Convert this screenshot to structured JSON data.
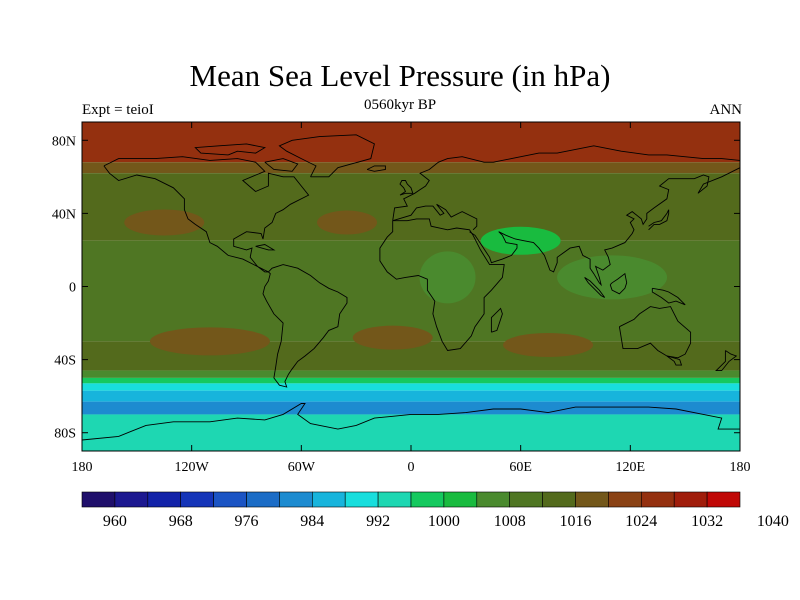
{
  "title": "Mean Sea Level Pressure (in hPa)",
  "subtitle": "0560kyr BP",
  "left_label": "Expt = teioI",
  "right_label": "ANN",
  "lat_ticks": [
    {
      "label": "80N",
      "lat": 80
    },
    {
      "label": "40N",
      "lat": 40
    },
    {
      "label": "0",
      "lat": 0
    },
    {
      "label": "40S",
      "lat": -40
    },
    {
      "label": "80S",
      "lat": -80
    }
  ],
  "lon_ticks": [
    {
      "label": "180",
      "lon": -180
    },
    {
      "label": "120W",
      "lon": -120
    },
    {
      "label": "60W",
      "lon": -60
    },
    {
      "label": "0",
      "lon": 0
    },
    {
      "label": "60E",
      "lon": 60
    },
    {
      "label": "120E",
      "lon": 120
    },
    {
      "label": "180",
      "lon": 180
    }
  ],
  "colorbar": {
    "colors": [
      "#1f0f6b",
      "#1c1890",
      "#1222a8",
      "#1434b8",
      "#1b54c4",
      "#1b6cc6",
      "#1d8bd0",
      "#17b4dc",
      "#18dedd",
      "#1ed7b2",
      "#15c95f",
      "#19bb3f",
      "#4a8a2e",
      "#4f7623",
      "#536a1c",
      "#73571a",
      "#8a4214",
      "#94300f",
      "#a01d0b",
      "#c00806"
    ],
    "labels": [
      "960",
      "968",
      "976",
      "984",
      "992",
      "1000",
      "1008",
      "1016",
      "1024",
      "1032",
      "1040"
    ]
  },
  "chart_data": {
    "type": "heatmap",
    "title": "Mean Sea Level Pressure (in hPa)",
    "subtitle": "0560kyr BP",
    "units": "hPa",
    "experiment": "teioI",
    "season": "ANN",
    "x_range": [
      -180,
      180
    ],
    "y_range": [
      -90,
      90
    ],
    "levels": [
      956,
      960,
      964,
      968,
      972,
      976,
      980,
      984,
      988,
      992,
      996,
      1000,
      1004,
      1008,
      1012,
      1016,
      1020,
      1024,
      1028,
      1032,
      1036,
      1040,
      1044
    ],
    "zonal_bands_hPa": [
      {
        "lat_from": 90,
        "lat_to": 68,
        "value": 1028
      },
      {
        "lat_from": 68,
        "lat_to": 62,
        "value": 1020
      },
      {
        "lat_from": 62,
        "lat_to": 25,
        "value": 1016
      },
      {
        "lat_from": 25,
        "lat_to": -30,
        "value": 1012
      },
      {
        "lat_from": -30,
        "lat_to": -46,
        "value": 1016
      },
      {
        "lat_from": -46,
        "lat_to": -50,
        "value": 1008
      },
      {
        "lat_from": -50,
        "lat_to": -53,
        "value": 1000
      },
      {
        "lat_from": -53,
        "lat_to": -57,
        "value": 992
      },
      {
        "lat_from": -57,
        "lat_to": -63,
        "value": 988
      },
      {
        "lat_from": -63,
        "lat_to": -70,
        "value": 984
      },
      {
        "lat_from": -70,
        "lat_to": -90,
        "value": 996
      }
    ],
    "features": [
      {
        "name": "north-pacific-high",
        "lon": -135,
        "lat": 35,
        "value": 1020
      },
      {
        "name": "north-atlantic-high",
        "lon": -35,
        "lat": 35,
        "value": 1020
      },
      {
        "name": "south-pacific-high",
        "lon": -110,
        "lat": -30,
        "value": 1020
      },
      {
        "name": "south-atlantic-high",
        "lon": -10,
        "lat": -28,
        "value": 1020
      },
      {
        "name": "south-indian-high",
        "lon": 75,
        "lat": -32,
        "value": 1020
      },
      {
        "name": "asian-monsoon-low",
        "lon": 60,
        "lat": 25,
        "value": 1004
      },
      {
        "name": "maritime-continent-low",
        "lon": 110,
        "lat": 5,
        "value": 1008
      },
      {
        "name": "african-low",
        "lon": 20,
        "lat": 5,
        "value": 1008
      }
    ]
  }
}
